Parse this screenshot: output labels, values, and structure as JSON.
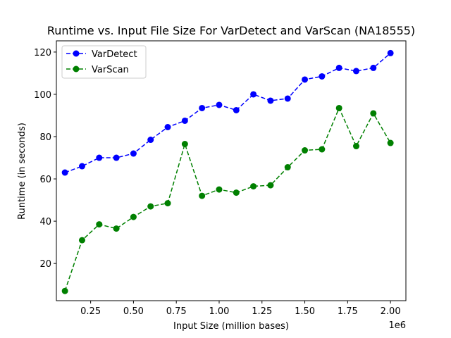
{
  "chart_data": {
    "type": "line",
    "title": "Runtime vs. Input File Size For VarDetect and VarScan (NA18555)",
    "xlabel": "Input Size (million bases)",
    "ylabel": "Runtime (in seconds)",
    "x_offset_label": "1e6",
    "xlim": [
      0.05,
      2.09
    ],
    "ylim": [
      2.4,
      125.3
    ],
    "x_ticks": [
      0.25,
      0.5,
      0.75,
      1.0,
      1.25,
      1.5,
      1.75,
      2.0
    ],
    "x_tick_labels": [
      "0.25",
      "0.50",
      "0.75",
      "1.00",
      "1.25",
      "1.50",
      "1.75",
      "2.00"
    ],
    "y_ticks": [
      20,
      40,
      60,
      80,
      100,
      120
    ],
    "y_tick_labels": [
      "20",
      "40",
      "60",
      "80",
      "100",
      "120"
    ],
    "grid": false,
    "legend_position": "upper-left",
    "x": [
      0.1,
      0.2,
      0.3,
      0.4,
      0.5,
      0.6,
      0.7,
      0.8,
      0.9,
      1.0,
      1.1,
      1.2,
      1.3,
      1.4,
      1.5,
      1.6,
      1.7,
      1.8,
      1.9,
      2.0
    ],
    "series": [
      {
        "name": "VarDetect",
        "color": "#0000ff",
        "linestyle": "dashed",
        "marker": "circle",
        "values": [
          63,
          66,
          70,
          70,
          72,
          78.5,
          84.5,
          87.5,
          93.5,
          95,
          92.5,
          100,
          97,
          98,
          107,
          108.5,
          112.5,
          111,
          112.5,
          119.5
        ]
      },
      {
        "name": "VarScan",
        "color": "#008000",
        "linestyle": "dashed",
        "marker": "circle",
        "values": [
          7,
          31,
          38.5,
          36.5,
          42,
          47,
          48.5,
          76.5,
          52,
          55,
          53.5,
          56.5,
          57,
          65.5,
          73.5,
          74,
          93.5,
          75.5,
          91,
          77
        ]
      }
    ]
  }
}
